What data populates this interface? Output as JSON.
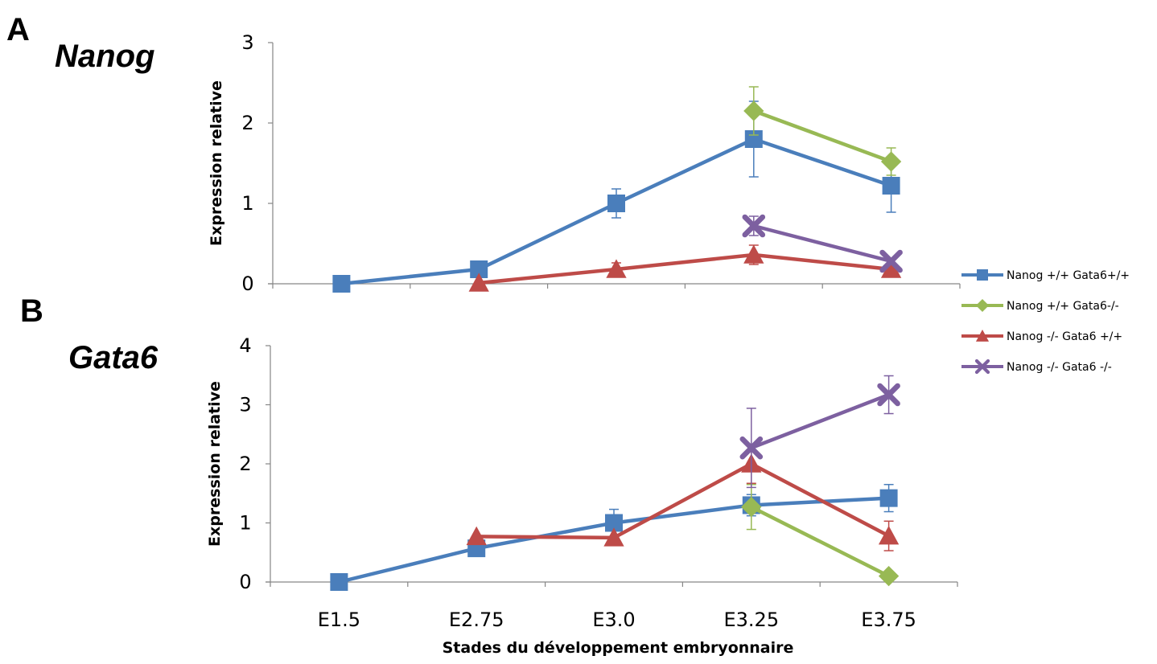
{
  "panels": [
    {
      "letter": "A",
      "gene": "Nanog"
    },
    {
      "letter": "B",
      "gene": "Gata6"
    }
  ],
  "chart_data": [
    {
      "type": "line",
      "title": "Nanog",
      "categories": [
        "E1.5",
        "E2.75",
        "E3.0",
        "E3.25",
        "E3.75"
      ],
      "ylabel": "Expression relative",
      "ylim": [
        0,
        3
      ],
      "yticks": [
        "0",
        "1",
        "2",
        "3"
      ],
      "grid": false,
      "series": [
        {
          "name": "Nanog +/+ Gata6+/+",
          "color": "#4a7ebb",
          "marker": "square",
          "values": [
            0,
            0.18,
            1.0,
            1.8,
            1.22
          ],
          "errors": [
            0,
            0,
            0.18,
            0.47,
            0.33
          ]
        },
        {
          "name": "Nanog +/+ Gata6-/-",
          "color": "#98b954",
          "marker": "diamond",
          "values": [
            null,
            null,
            null,
            2.15,
            1.52
          ],
          "errors": [
            0,
            0,
            0,
            0.3,
            0.17
          ]
        },
        {
          "name": "Nanog -/- Gata6 +/+",
          "color": "#be4b48",
          "marker": "triangle",
          "values": [
            null,
            0.01,
            0.18,
            0.36,
            0.18
          ],
          "errors": [
            0,
            0,
            0.08,
            0.12,
            0.05
          ]
        },
        {
          "name": "Nanog -/- Gata6 -/-",
          "color": "#7d60a0",
          "marker": "x",
          "values": [
            null,
            null,
            null,
            0.72,
            0.28
          ],
          "errors": [
            0,
            0,
            0,
            0.12,
            0.03
          ]
        }
      ]
    },
    {
      "type": "line",
      "title": "Gata6",
      "categories": [
        "E1.5",
        "E2.75",
        "E3.0",
        "E3.25",
        "E3.75"
      ],
      "xlabel": "Stades du développement embryonnaire",
      "ylabel": "Expression relative",
      "ylim": [
        0,
        4
      ],
      "yticks": [
        "0",
        "1",
        "2",
        "3",
        "4"
      ],
      "grid": false,
      "legend": "right",
      "series": [
        {
          "name": "Nanog +/+ Gata6+/+",
          "color": "#4a7ebb",
          "marker": "square",
          "values": [
            0,
            0.57,
            1.0,
            1.3,
            1.42
          ],
          "errors": [
            0,
            0,
            0.23,
            0.18,
            0.23
          ]
        },
        {
          "name": "Nanog +/+ Gata6-/-",
          "color": "#98b954",
          "marker": "diamond",
          "values": [
            null,
            null,
            null,
            1.27,
            0.1
          ],
          "errors": [
            0,
            0,
            0,
            0.38,
            0
          ]
        },
        {
          "name": "Nanog -/- Gata6 +/+",
          "color": "#be4b48",
          "marker": "triangle",
          "values": [
            null,
            0.77,
            0.75,
            2.0,
            0.78
          ],
          "errors": [
            0,
            0,
            0,
            0.33,
            0.25
          ]
        },
        {
          "name": "Nanog -/- Gata6 -/-",
          "color": "#7d60a0",
          "marker": "x",
          "values": [
            null,
            null,
            null,
            2.27,
            3.17
          ],
          "errors": [
            0,
            0,
            0,
            0.67,
            0.32
          ]
        }
      ]
    }
  ]
}
